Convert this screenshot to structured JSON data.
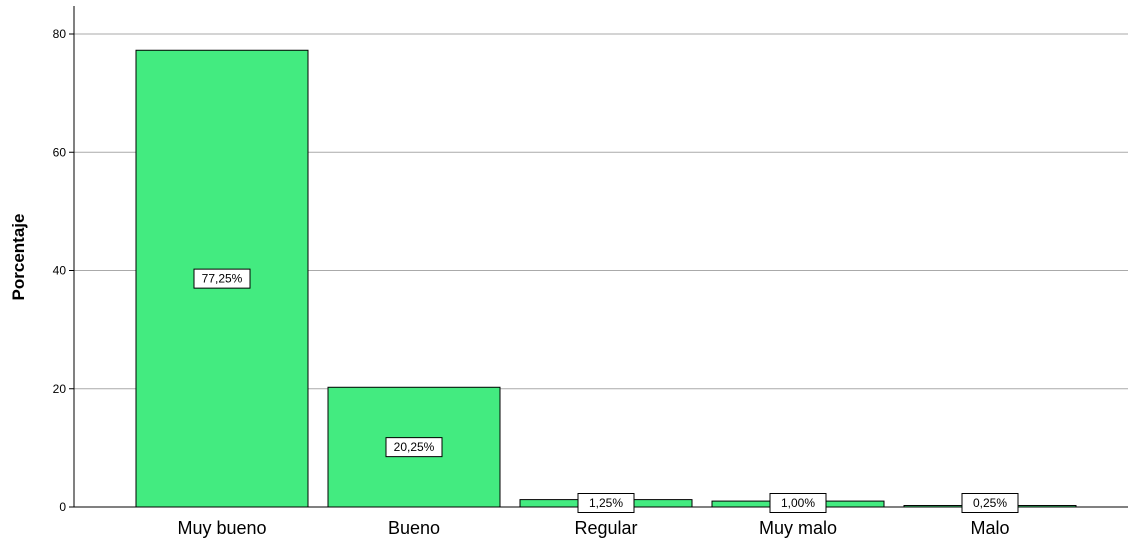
{
  "chart_data": {
    "type": "bar",
    "categories": [
      "Muy bueno",
      "Bueno",
      "Regular",
      "Muy malo",
      "Malo"
    ],
    "values": [
      77.25,
      20.25,
      1.25,
      1.0,
      0.25
    ],
    "data_labels": [
      "77,25%",
      "20,25%",
      "1,25%",
      "1,00%",
      "0,25%"
    ],
    "title": "",
    "xlabel": "",
    "ylabel": "Porcentaje",
    "ylim": [
      0,
      84
    ],
    "yticks": [
      0,
      20,
      40,
      60,
      80
    ],
    "ytick_labels": [
      "0",
      "20",
      "40",
      "60",
      "80"
    ],
    "grid": true,
    "colors": {
      "bar_fill": "#43eb80",
      "bar_stroke": "#000000",
      "grid": "#aaaaaa"
    }
  }
}
